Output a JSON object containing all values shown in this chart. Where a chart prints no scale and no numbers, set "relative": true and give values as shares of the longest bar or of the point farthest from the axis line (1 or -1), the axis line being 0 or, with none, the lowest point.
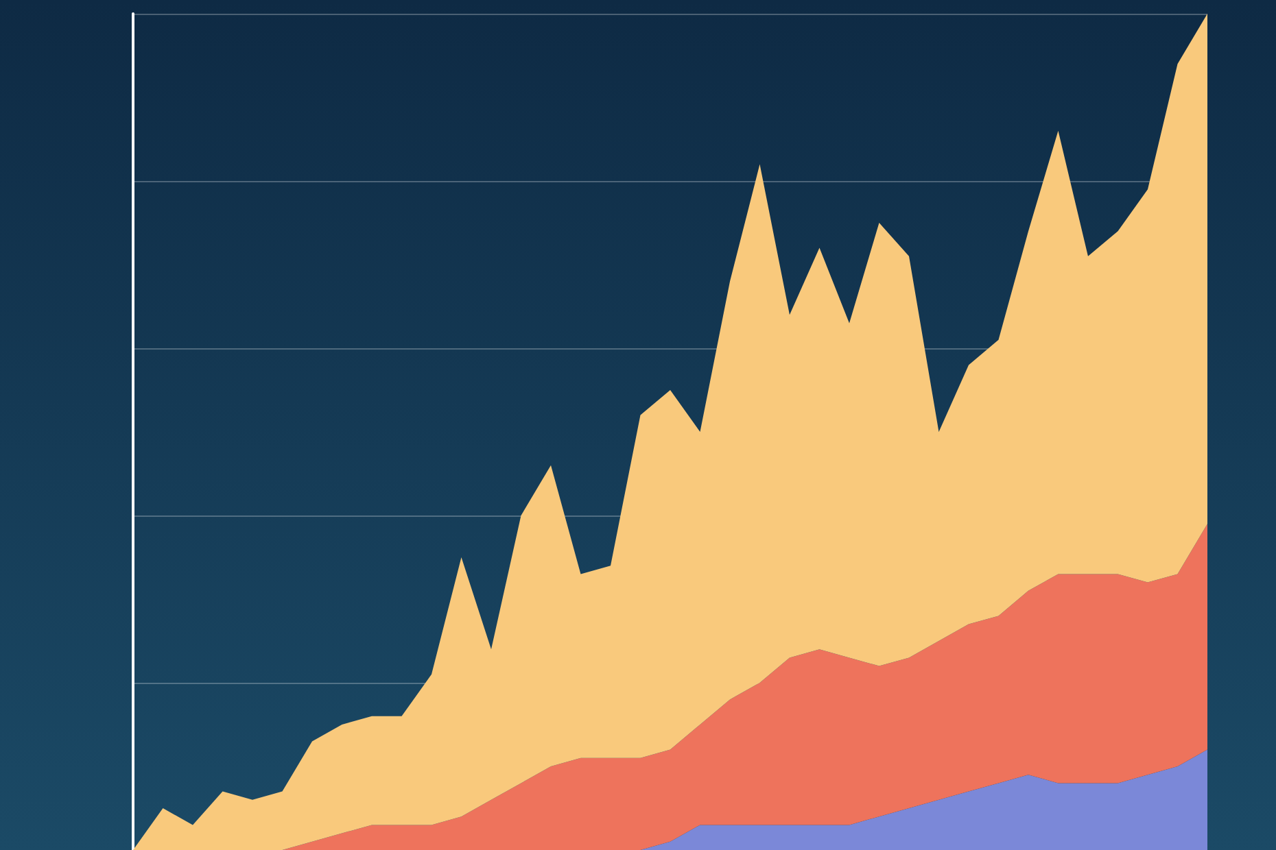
{
  "chart_data": {
    "type": "area",
    "stacked": true,
    "relative": true,
    "grid": "y",
    "marker": "none",
    "categories": [
      null,
      null,
      null,
      null,
      null,
      null,
      null,
      null,
      null,
      null,
      null,
      null,
      null,
      null,
      null,
      null,
      null,
      null,
      null,
      null,
      null,
      null,
      null,
      null,
      null,
      null,
      null,
      null,
      null,
      null,
      null,
      null,
      null,
      null,
      null,
      null,
      null
    ],
    "series": [
      {
        "color": "#7b88d8",
        "values": [
          0,
          0,
          0,
          0,
          0,
          0,
          0,
          0,
          0,
          0,
          0,
          0,
          0,
          0,
          0,
          0,
          0,
          0,
          0.01,
          0.03,
          0.03,
          0.03,
          0.03,
          0.03,
          0.03,
          0.04,
          0.05,
          0.06,
          0.07,
          0.08,
          0.09,
          0.08,
          0.08,
          0.08,
          0.09,
          0.1,
          0.12
        ]
      },
      {
        "color": "#ee735c",
        "values": [
          0,
          0,
          0,
          0,
          0,
          0,
          0.01,
          0.02,
          0.03,
          0.03,
          0.03,
          0.04,
          0.06,
          0.08,
          0.1,
          0.11,
          0.11,
          0.11,
          0.11,
          0.12,
          0.15,
          0.17,
          0.2,
          0.21,
          0.2,
          0.18,
          0.18,
          0.19,
          0.2,
          0.2,
          0.22,
          0.25,
          0.25,
          0.25,
          0.23,
          0.23,
          0.27
        ]
      },
      {
        "color": "#f9c97c",
        "values": [
          0,
          0.05,
          0.03,
          0.07,
          0.06,
          0.07,
          0.12,
          0.13,
          0.13,
          0.13,
          0.18,
          0.31,
          0.18,
          0.32,
          0.36,
          0.22,
          0.23,
          0.41,
          0.43,
          0.35,
          0.5,
          0.62,
          0.41,
          0.48,
          0.4,
          0.53,
          0.48,
          0.25,
          0.31,
          0.33,
          0.43,
          0.53,
          0.38,
          0.41,
          0.47,
          0.61,
          0.61
        ]
      }
    ]
  }
}
